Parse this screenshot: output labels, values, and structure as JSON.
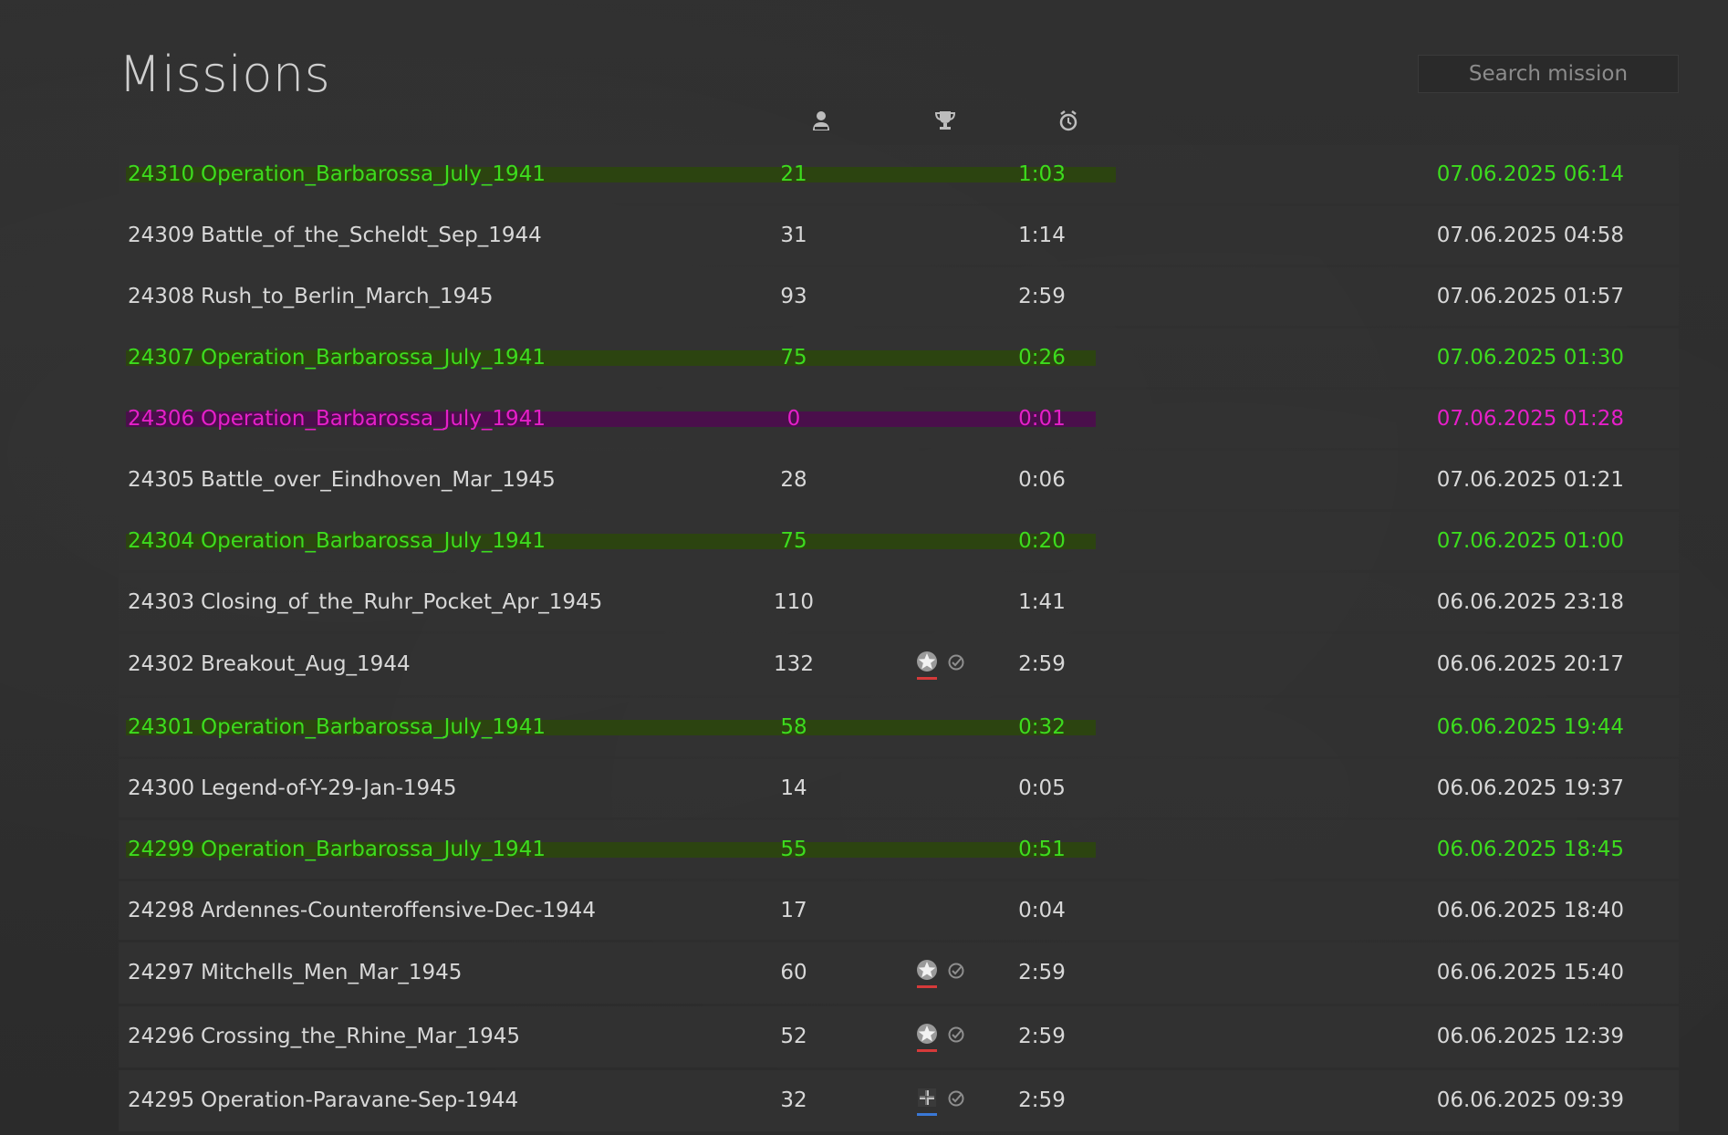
{
  "page": {
    "title": "Missions",
    "search_placeholder": "Search mission"
  },
  "header_icons": [
    {
      "name": "players-icon"
    },
    {
      "name": "trophy-icon"
    },
    {
      "name": "clock-icon"
    }
  ],
  "colors": {
    "success": "#3ddc1e",
    "success_bar": "#2c4410",
    "failed": "#e51fc8",
    "failed_bar": "#4a0f4b",
    "axis_underline": "#d63a3a",
    "allied_underline": "#3a78d6"
  },
  "missions": [
    {
      "id": "24310",
      "name": "Operation_Barbarossa_July_1941",
      "players": "21",
      "time": "1:03",
      "date": "07.06.2025 06:14",
      "status": "success",
      "bar_pct": 100,
      "badges": []
    },
    {
      "id": "24309",
      "name": "Battle_of_the_Scheldt_Sep_1944",
      "players": "31",
      "time": "1:14",
      "date": "07.06.2025 04:58",
      "status": "normal",
      "badges": []
    },
    {
      "id": "24308",
      "name": "Rush_to_Berlin_March_1945",
      "players": "93",
      "time": "2:59",
      "date": "07.06.2025 01:57",
      "status": "normal",
      "badges": []
    },
    {
      "id": "24307",
      "name": "Operation_Barbarossa_July_1941",
      "players": "75",
      "time": "0:26",
      "date": "07.06.2025 01:30",
      "status": "success",
      "bar_pct": 98,
      "badges": []
    },
    {
      "id": "24306",
      "name": "Operation_Barbarossa_July_1941",
      "players": "0",
      "time": "0:01",
      "date": "07.06.2025 01:28",
      "status": "fail",
      "bar_pct": 98,
      "badges": []
    },
    {
      "id": "24305",
      "name": "Battle_over_Eindhoven_Mar_1945",
      "players": "28",
      "time": "0:06",
      "date": "07.06.2025 01:21",
      "status": "normal",
      "badges": []
    },
    {
      "id": "24304",
      "name": "Operation_Barbarossa_July_1941",
      "players": "75",
      "time": "0:20",
      "date": "07.06.2025 01:00",
      "status": "success",
      "bar_pct": 98,
      "badges": []
    },
    {
      "id": "24303",
      "name": "Closing_of_the_Ruhr_Pocket_Apr_1945",
      "players": "110",
      "time": "1:41",
      "date": "06.06.2025 23:18",
      "status": "normal",
      "badges": []
    },
    {
      "id": "24302",
      "name": "Breakout_Aug_1944",
      "players": "132",
      "time": "2:59",
      "date": "06.06.2025 20:17",
      "status": "normal",
      "badges": [
        {
          "icon": "star-icon",
          "side": "axis"
        },
        {
          "icon": "check-icon"
        }
      ]
    },
    {
      "id": "24301",
      "name": "Operation_Barbarossa_July_1941",
      "players": "58",
      "time": "0:32",
      "date": "06.06.2025 19:44",
      "status": "success",
      "bar_pct": 98,
      "badges": []
    },
    {
      "id": "24300",
      "name": "Legend-of-Y-29-Jan-1945",
      "players": "14",
      "time": "0:05",
      "date": "06.06.2025 19:37",
      "status": "normal",
      "badges": []
    },
    {
      "id": "24299",
      "name": "Operation_Barbarossa_July_1941",
      "players": "55",
      "time": "0:51",
      "date": "06.06.2025 18:45",
      "status": "success",
      "bar_pct": 98,
      "badges": []
    },
    {
      "id": "24298",
      "name": "Ardennes-Counteroffensive-Dec-1944",
      "players": "17",
      "time": "0:04",
      "date": "06.06.2025 18:40",
      "status": "normal",
      "badges": []
    },
    {
      "id": "24297",
      "name": "Mitchells_Men_Mar_1945",
      "players": "60",
      "time": "2:59",
      "date": "06.06.2025 15:40",
      "status": "normal",
      "badges": [
        {
          "icon": "star-icon",
          "side": "axis"
        },
        {
          "icon": "check-icon"
        }
      ]
    },
    {
      "id": "24296",
      "name": "Crossing_the_Rhine_Mar_1945",
      "players": "52",
      "time": "2:59",
      "date": "06.06.2025 12:39",
      "status": "normal",
      "badges": [
        {
          "icon": "star-icon",
          "side": "axis"
        },
        {
          "icon": "check-icon"
        }
      ]
    },
    {
      "id": "24295",
      "name": "Operation-Paravane-Sep-1944",
      "players": "32",
      "time": "2:59",
      "date": "06.06.2025 09:39",
      "status": "normal",
      "badges": [
        {
          "icon": "cross-icon",
          "side": "allied"
        },
        {
          "icon": "check-icon"
        }
      ]
    }
  ]
}
